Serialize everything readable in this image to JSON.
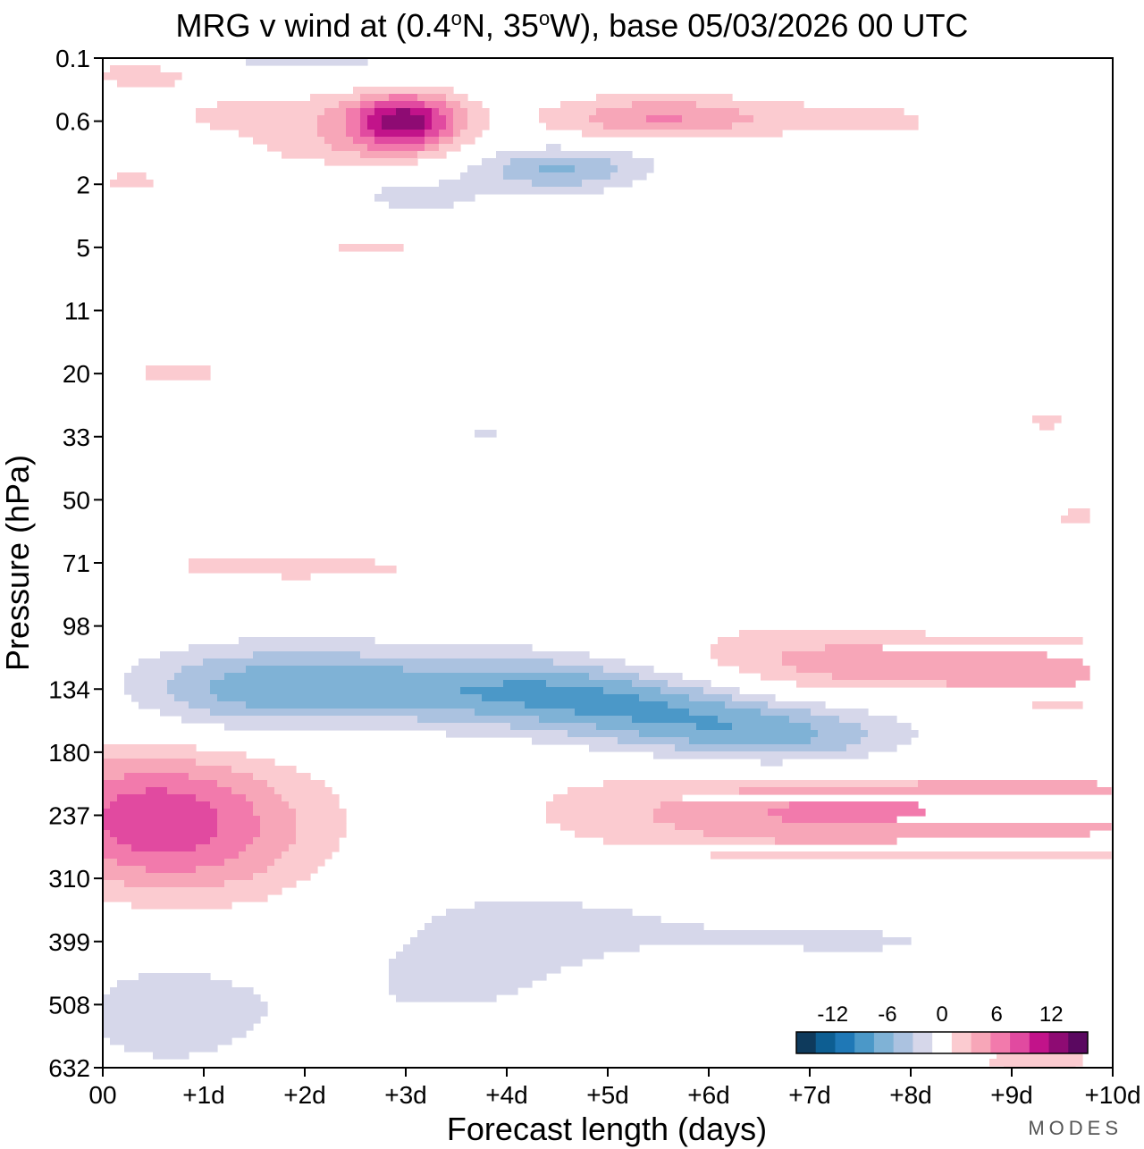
{
  "chart_data": {
    "type": "heatmap",
    "title_parts": [
      "MRG v wind at (0.4",
      "o",
      "N, 35",
      "o",
      "W),  base 05/03/2026  00 UTC"
    ],
    "xlabel": "Forecast length (days)",
    "ylabel": "Pressure (hPa)",
    "x_ticks": [
      "00",
      "+1d",
      "+2d",
      "+3d",
      "+4d",
      "+5d",
      "+6d",
      "+7d",
      "+8d",
      "+9d",
      "+10d"
    ],
    "x_range_days": [
      0,
      10
    ],
    "y_ticks": [
      "0.1",
      "0.6",
      "2",
      "5",
      "11",
      "20",
      "33",
      "50",
      "71",
      "98",
      "134",
      "180",
      "237",
      "310",
      "399",
      "508",
      "632"
    ],
    "y_range_hPa": [
      0.1,
      632
    ],
    "colorbar": {
      "tick_labels": [
        "-12",
        "-6",
        "0",
        "6",
        "12"
      ],
      "tick_values": [
        -12,
        -6,
        0,
        6,
        12
      ],
      "levels": [
        -16,
        -14,
        -12,
        -10,
        -8,
        -6,
        -4,
        -2,
        2,
        4,
        6,
        8,
        10,
        12,
        14,
        16
      ],
      "colors": [
        "#0e3a5c",
        "#0d5e92",
        "#1f78b6",
        "#4b98c8",
        "#7fb2d6",
        "#abc2e0",
        "#d6d7ea",
        "#ffffff",
        "#fbcbd0",
        "#f7a6b8",
        "#f27aac",
        "#e14aa0",
        "#c2138a",
        "#8e0b73",
        "#5a0860"
      ]
    },
    "features": [
      {
        "name": "lower-strat-negative-jet",
        "day": 5.5,
        "hPa": 150,
        "peak": -14
      },
      {
        "name": "lower-strat-negative-west",
        "day": 2.0,
        "hPa": 134,
        "peak": -10
      },
      {
        "name": "upper-trop-positive-initial",
        "day": 0.5,
        "hPa": 237,
        "peak": 12
      },
      {
        "name": "upper-trop-positive-mid",
        "day": 6.0,
        "hPa": 240,
        "peak": 8
      },
      {
        "name": "upper-trop-positive-late",
        "day": 8.8,
        "hPa": 237,
        "peak": 8
      },
      {
        "name": "lower-strat-positive",
        "day": 8.0,
        "hPa": 120,
        "peak": 8
      },
      {
        "name": "upper-strat-positive",
        "day": 3.0,
        "hPa": 0.6,
        "peak": 16
      },
      {
        "name": "upper-strat-positive-5d",
        "day": 5.5,
        "hPa": 0.5,
        "peak": 10
      },
      {
        "name": "upper-strat-negative",
        "day": 4.5,
        "hPa": 1.5,
        "peak": -10
      },
      {
        "name": "mid-trop-negative",
        "day": 3.5,
        "hPa": 500,
        "peak": -4
      },
      {
        "name": "lower-trop-negative",
        "day": 0.5,
        "hPa": 520,
        "peak": -4
      }
    ]
  },
  "branding": {
    "logo_text": "MODES"
  }
}
